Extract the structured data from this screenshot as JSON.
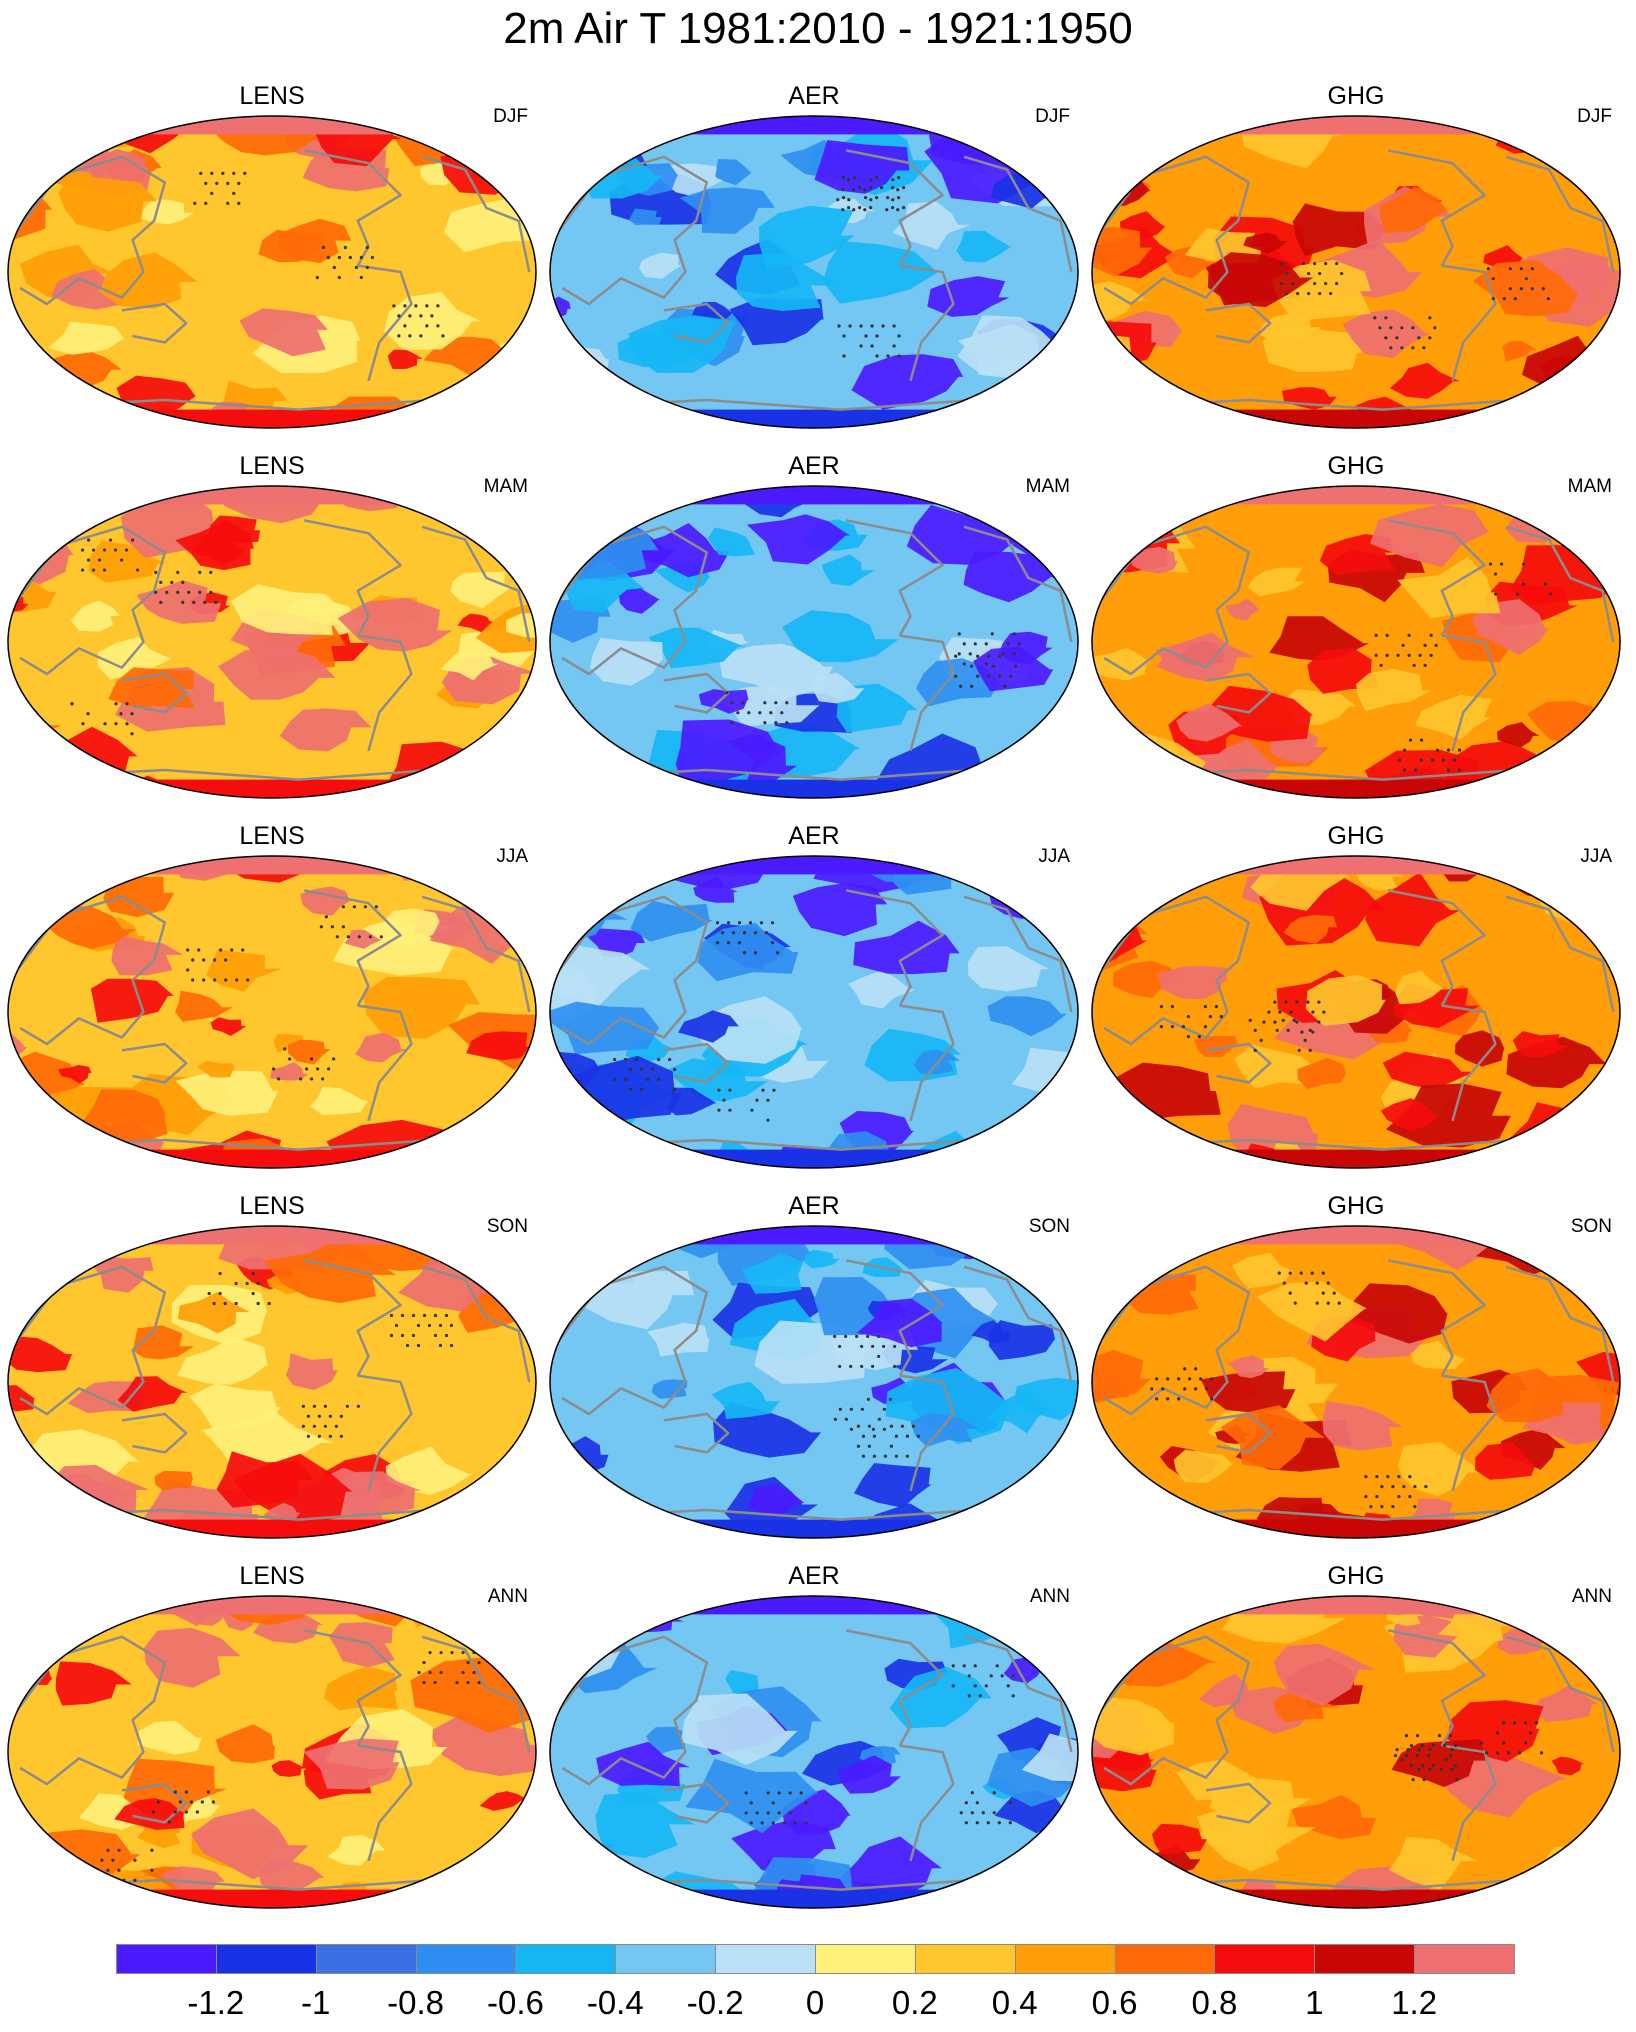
{
  "title": "2m Air T 1981:2010 - 1921:1950",
  "columns": [
    "LENS",
    "AER",
    "GHG"
  ],
  "seasons": [
    "DJF",
    "MAM",
    "JJA",
    "SON",
    "ANN"
  ],
  "colorbar": {
    "labels": [
      "-1.2",
      "-1",
      "-0.8",
      "-0.6",
      "-0.4",
      "-0.2",
      "0",
      "0.2",
      "0.4",
      "0.6",
      "0.8",
      "1",
      "1.2"
    ],
    "colors": [
      "#4b1aff",
      "#1a32e6",
      "#3a6fe6",
      "#2f8ff0",
      "#16b6f5",
      "#74c7f2",
      "#b9e0f5",
      "#fff07a",
      "#ffc62e",
      "#ff9e08",
      "#ff6a08",
      "#f50c0c",
      "#c80606",
      "#ee7070"
    ]
  },
  "palette": {
    "LENS": [
      "#ffc62e",
      "#fff07a",
      "#ff9e08",
      "#ff6a08",
      "#f50c0c",
      "#ee7070",
      "#74c7f2"
    ],
    "AER": [
      "#74c7f2",
      "#b9e0f5",
      "#16b6f5",
      "#2f8ff0",
      "#1a32e6",
      "#4b1aff",
      "#fff07a"
    ],
    "GHG": [
      "#ff9e08",
      "#ff6a08",
      "#ffc62e",
      "#f50c0c",
      "#c80606",
      "#ee7070",
      "#74c7f2"
    ]
  },
  "colors": {
    "coastline": "#8c8c8c",
    "stipple": "#333333",
    "map_outline": "#000000"
  }
}
